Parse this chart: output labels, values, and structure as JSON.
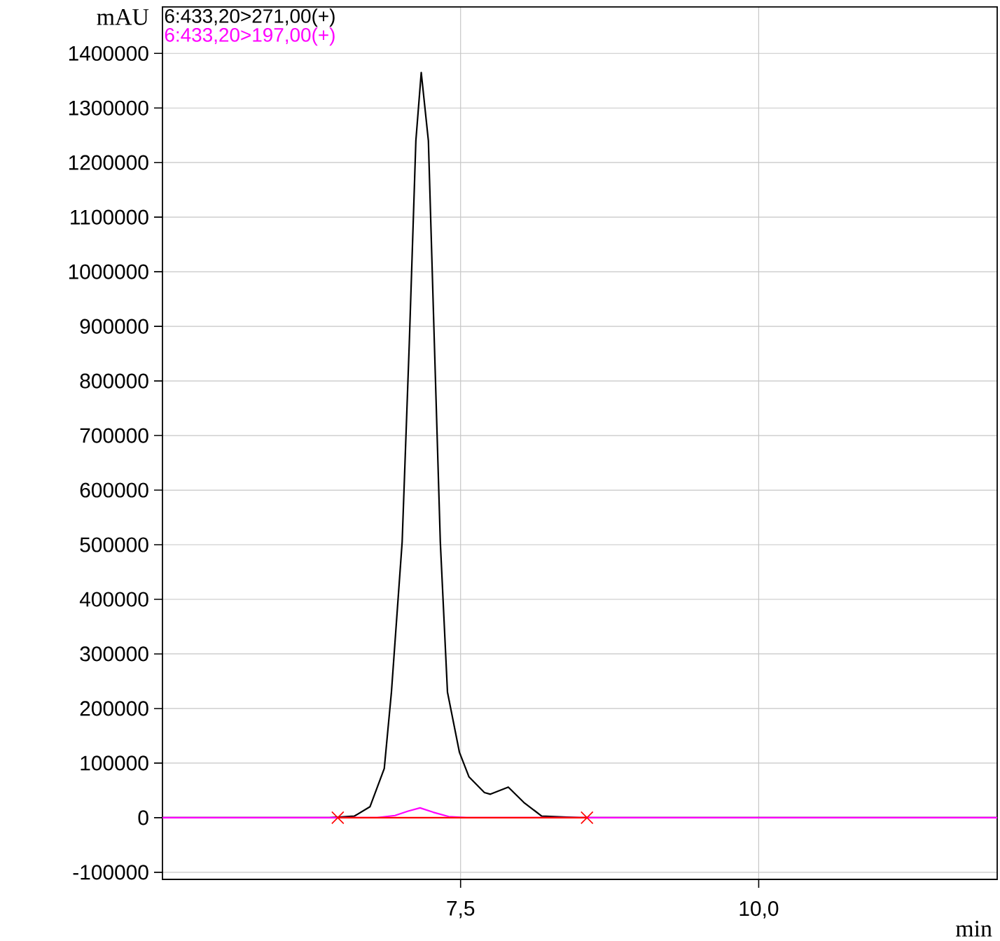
{
  "chart_data": {
    "type": "line",
    "xlabel": "min",
    "ylabel": "mAU",
    "xlim": [
      5.0,
      12.0
    ],
    "ylim": [
      -113000,
      1485000
    ],
    "xticks": [
      {
        "value": 7.5,
        "label": "7,5"
      },
      {
        "value": 10.0,
        "label": "10,0"
      }
    ],
    "yticks": [
      -100000,
      0,
      100000,
      200000,
      300000,
      400000,
      500000,
      600000,
      700000,
      800000,
      900000,
      1000000,
      1100000,
      1200000,
      1300000,
      1400000
    ],
    "grid": true,
    "legend": "top left",
    "series": [
      {
        "name": "6:433,20>271,00(+)",
        "color": "#000000",
        "x": [
          5.0,
          6.4,
          6.61,
          6.74,
          6.86,
          6.92,
          7.01,
          7.07,
          7.125,
          7.17,
          7.23,
          7.28,
          7.33,
          7.39,
          7.49,
          7.57,
          7.7,
          7.75,
          7.9,
          8.03,
          8.18,
          8.5,
          12.0
        ],
        "values": [
          0,
          0,
          3000,
          20000,
          90000,
          230000,
          505000,
          870000,
          1240000,
          1365000,
          1240000,
          870000,
          505000,
          230000,
          120000,
          75000,
          46000,
          43000,
          56000,
          28000,
          3000,
          0,
          0
        ]
      },
      {
        "name": "6:433,20>197,00(+)",
        "color": "#ff00ff",
        "x": [
          5.0,
          6.8,
          6.95,
          7.06,
          7.16,
          7.27,
          7.4,
          7.55,
          12.0
        ],
        "values": [
          0,
          0,
          4000,
          12000,
          18000,
          10000,
          2000,
          0,
          0
        ]
      },
      {
        "color": "#ff0000",
        "marker": "cross",
        "x": [
          6.47,
          8.56
        ],
        "values": [
          0,
          0
        ]
      }
    ]
  }
}
